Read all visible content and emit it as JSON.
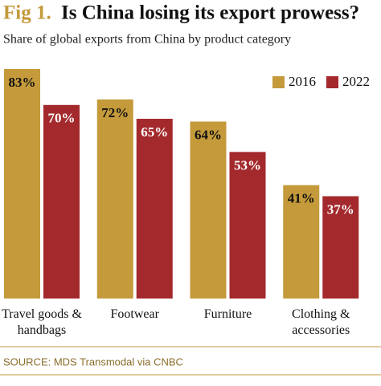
{
  "chart_data": {
    "type": "bar",
    "title_prefix": "Fig 1.",
    "title": "Is China losing its export prowess?",
    "subtitle": "Share of global exports from China by product category",
    "categories": [
      "Travel goods & handbags",
      "Footwear",
      "Furniture",
      "Clothing & accessories"
    ],
    "series": [
      {
        "name": "2016",
        "color": "#c49a3b",
        "values": [
          83,
          72,
          64,
          41
        ],
        "value_labels": [
          "83%",
          "72%",
          "64%",
          "41%"
        ]
      },
      {
        "name": "2022",
        "color": "#a3292d",
        "values": [
          70,
          65,
          53,
          37
        ],
        "value_labels": [
          "70%",
          "65%",
          "53%",
          "37%"
        ]
      }
    ],
    "legend": "top-right",
    "source": "SOURCE: MDS Transmodal via CNBC"
  }
}
